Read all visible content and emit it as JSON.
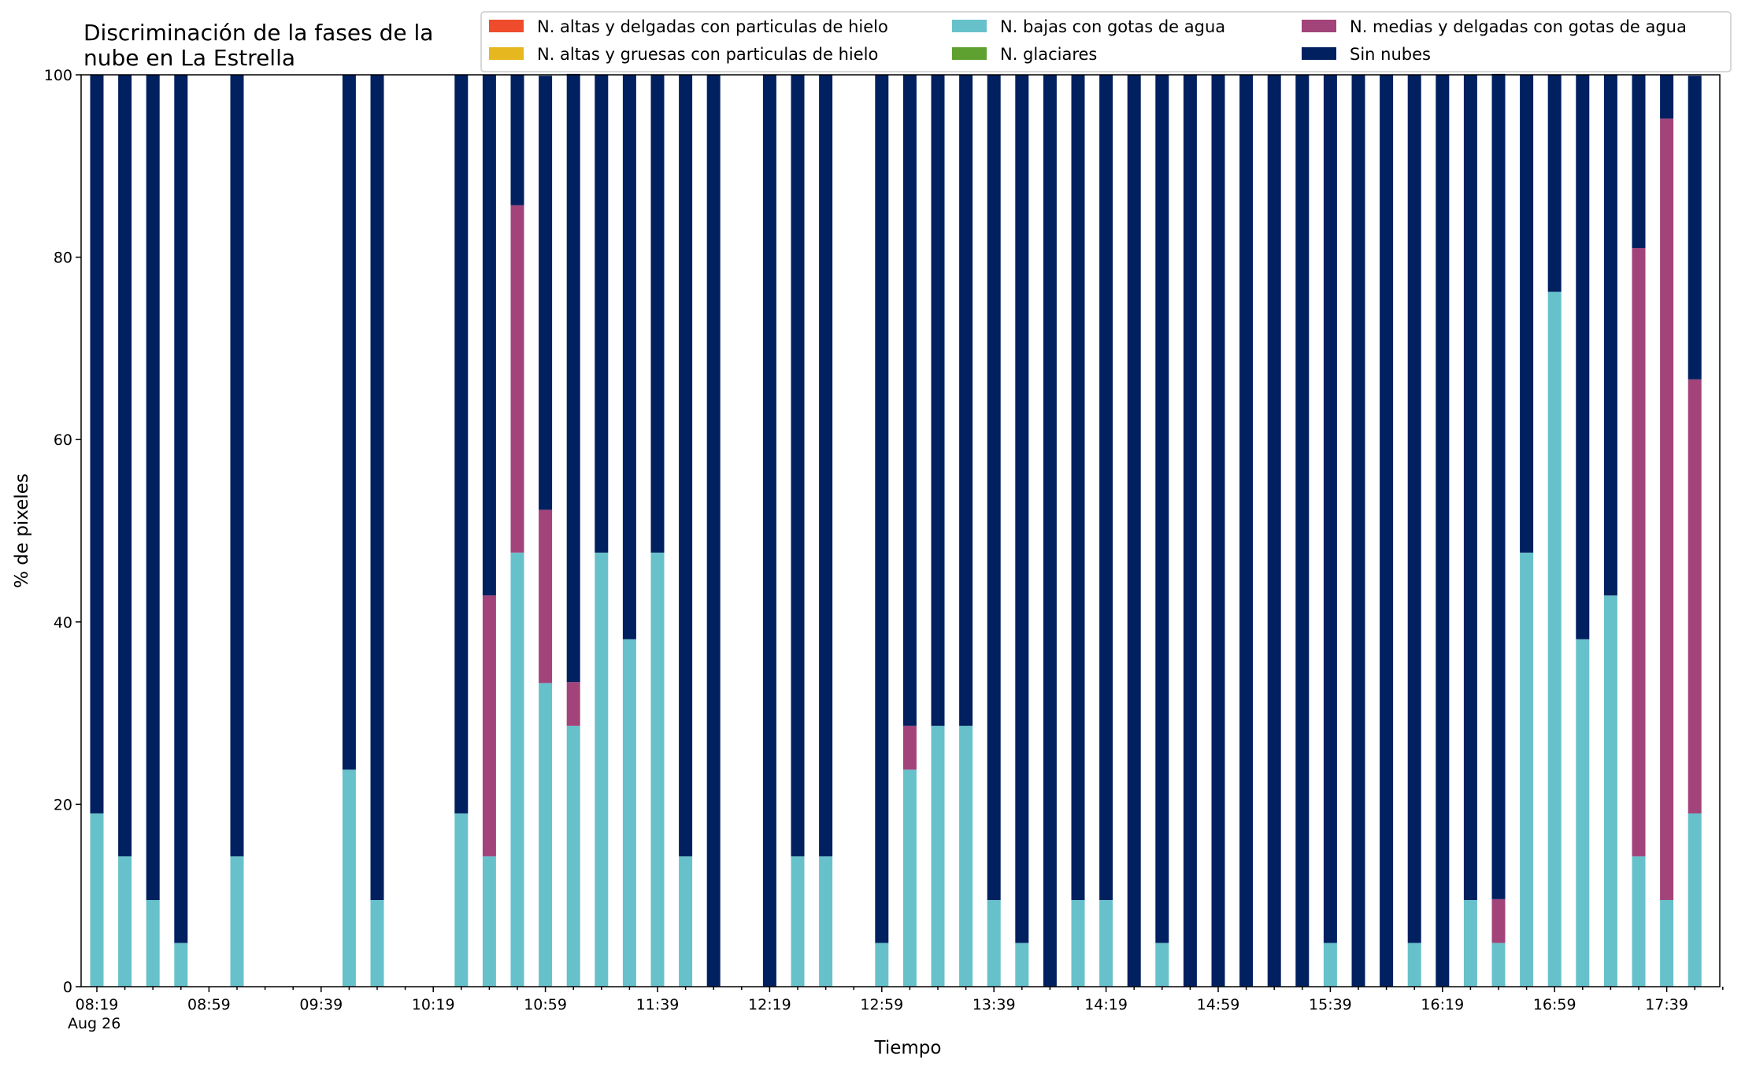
{
  "chart_data": {
    "type": "bar",
    "stacked": true,
    "title_lines": [
      "Discriminación de la fases de la",
      "nube en La Estrella"
    ],
    "xlabel": "Tiempo",
    "ylabel": "% de pixeles",
    "ylim": [
      0,
      100
    ],
    "yticks": [
      0,
      20,
      40,
      60,
      80,
      100
    ],
    "grid": false,
    "legend_position": "top-right",
    "xtick_labels": [
      "08:19",
      "08:59",
      "09:39",
      "10:19",
      "10:59",
      "11:39",
      "12:19",
      "12:59",
      "13:39",
      "14:19",
      "14:59",
      "15:39",
      "16:19",
      "16:59",
      "17:39"
    ],
    "xtick_sublabel": "Aug 26",
    "x_start": "08:19",
    "x_end": "17:59",
    "interval_minutes": 10,
    "categories": [
      "08:19",
      "08:29",
      "08:39",
      "08:49",
      "08:59",
      "09:09",
      "09:19",
      "09:29",
      "09:39",
      "09:49",
      "09:59",
      "10:09",
      "10:19",
      "10:29",
      "10:39",
      "10:49",
      "10:59",
      "11:09",
      "11:19",
      "11:29",
      "11:39",
      "11:49",
      "11:59",
      "12:09",
      "12:19",
      "12:29",
      "12:39",
      "12:49",
      "12:59",
      "13:09",
      "13:19",
      "13:29",
      "13:39",
      "13:49",
      "13:59",
      "14:09",
      "14:19",
      "14:29",
      "14:39",
      "14:49",
      "14:59",
      "15:09",
      "15:19",
      "15:29",
      "15:39",
      "15:49",
      "15:59",
      "16:09",
      "16:19",
      "16:29",
      "16:39",
      "16:49",
      "16:59",
      "17:09",
      "17:19",
      "17:29",
      "17:39",
      "17:49",
      "17:59"
    ],
    "series": [
      {
        "name": "N. altas y delgadas con particulas de hielo",
        "color": "#ee4c2c",
        "values": [
          0,
          0,
          0,
          0,
          0,
          null,
          null,
          null,
          0,
          0,
          0,
          null,
          null,
          0,
          0,
          0,
          0,
          0,
          0,
          0,
          0,
          0,
          0,
          0,
          0,
          0,
          0,
          0,
          0,
          0,
          0,
          0,
          0,
          0,
          0,
          0,
          0,
          0,
          0,
          0,
          0,
          0,
          0,
          0,
          0,
          0,
          0,
          0,
          0,
          0,
          0,
          0,
          0,
          0,
          0,
          0,
          0,
          0,
          0
        ]
      },
      {
        "name": "N. altas y gruesas con particulas de hielo",
        "color": "#e6b71e",
        "values": [
          0,
          0,
          0,
          0,
          0,
          null,
          null,
          null,
          0,
          0,
          0,
          null,
          null,
          0,
          0,
          0,
          0,
          0,
          0,
          0,
          0,
          0,
          0,
          0,
          0,
          0,
          0,
          0,
          0,
          0,
          0,
          0,
          0,
          0,
          0,
          0,
          0,
          0,
          0,
          0,
          0,
          0,
          0,
          0,
          0,
          0,
          0,
          0,
          0,
          0,
          0,
          0,
          0,
          0,
          0,
          0,
          0,
          0,
          0
        ]
      },
      {
        "name": "N. bajas con gotas de agua",
        "color": "#67c1cb",
        "values": [
          19,
          14.3,
          9.5,
          4.8,
          null,
          14.3,
          null,
          null,
          null,
          23.8,
          9.5,
          null,
          null,
          19,
          14.3,
          47.6,
          33.3,
          28.6,
          47.6,
          38.1,
          47.6,
          14.3,
          0,
          null,
          0,
          14.3,
          14.3,
          null,
          4.8,
          23.8,
          28.6,
          28.6,
          9.5,
          4.8,
          0,
          9.5,
          9.5,
          0,
          4.8,
          0,
          0,
          0,
          0,
          0,
          4.8,
          0,
          0,
          4.8,
          0,
          9.5,
          4.8,
          47.6,
          76.2,
          38.1,
          42.9,
          14.3,
          9.5,
          19,
          0
        ]
      },
      {
        "name": "N. glaciares",
        "color": "#5ea130",
        "values": [
          0,
          0,
          0,
          0,
          null,
          0,
          null,
          null,
          null,
          0,
          0,
          null,
          null,
          0,
          0,
          0,
          0,
          0,
          0,
          0,
          0,
          0,
          0,
          null,
          0,
          0,
          0,
          null,
          0,
          0,
          0,
          0,
          0,
          0,
          0,
          0,
          0,
          0,
          0,
          0,
          0,
          0,
          0,
          0,
          0,
          0,
          0,
          0,
          0,
          0,
          0,
          0,
          0,
          0,
          0,
          0,
          0,
          0,
          0
        ]
      },
      {
        "name": "N. medias y delgadas con gotas de agua",
        "color": "#a2447a",
        "values": [
          0,
          0,
          0,
          0,
          null,
          0,
          null,
          null,
          null,
          0,
          0,
          null,
          null,
          0,
          28.6,
          38.1,
          19,
          4.8,
          0,
          0,
          0,
          0,
          0,
          null,
          0,
          0,
          0,
          null,
          0,
          4.8,
          0,
          0,
          0,
          0,
          0,
          0,
          0,
          0,
          0,
          0,
          0,
          0,
          0,
          0,
          0,
          0,
          0,
          0,
          0,
          0,
          4.8,
          0,
          0,
          0,
          0,
          66.7,
          85.7,
          47.6,
          0
        ]
      },
      {
        "name": "Sin nubes",
        "color": "#012060",
        "values": [
          81,
          85.7,
          90.5,
          95.2,
          null,
          85.7,
          null,
          null,
          null,
          76.2,
          90.5,
          null,
          null,
          81,
          57.1,
          14.3,
          47.6,
          66.7,
          52.4,
          61.9,
          52.4,
          85.7,
          100,
          null,
          100,
          85.7,
          85.7,
          null,
          95.2,
          71.4,
          71.4,
          71.4,
          90.5,
          95.2,
          100,
          90.5,
          90.5,
          100,
          95.2,
          100,
          100,
          100,
          100,
          100,
          95.2,
          100,
          100,
          95.2,
          100,
          90.5,
          90.5,
          52.4,
          23.8,
          61.9,
          57.1,
          19,
          4.8,
          33.3,
          0
        ]
      }
    ]
  }
}
